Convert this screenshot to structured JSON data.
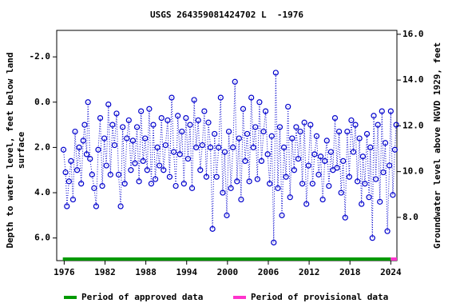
{
  "chart_data": {
    "type": "scatter",
    "title": "USGS 264359081424702 L  -1976",
    "ylabel": [
      "Depth to water level, feet below land",
      "surface"
    ],
    "y2label": "Groundwater level above NGVD 1929, feet",
    "xlim": [
      1974.9,
      2024.9
    ],
    "xticks": [
      1976,
      1982,
      1988,
      1994,
      2000,
      2006,
      2012,
      2018,
      2024
    ],
    "ylim": [
      -3.17,
      7.0
    ],
    "y_inverted": true,
    "yticks": [
      {
        "value": -2,
        "label": "-2.0"
      },
      {
        "value": 0,
        "label": "0.0"
      },
      {
        "value": 2,
        "label": "2.0"
      },
      {
        "value": 4,
        "label": "4.0"
      },
      {
        "value": 6,
        "label": "6.0"
      }
    ],
    "y2lim": [
      6.11,
      16.17
    ],
    "y2ticks": [
      {
        "value": 8,
        "label": "8.0"
      },
      {
        "value": 10,
        "label": "10.0"
      },
      {
        "value": 12,
        "label": "12.0"
      },
      {
        "value": 14,
        "label": "14.0"
      },
      {
        "value": 16,
        "label": "16.0"
      }
    ],
    "color": "#0000cc",
    "x": [
      1975.9,
      1976.2,
      1976.4,
      1976.7,
      1977.0,
      1977.3,
      1977.6,
      1977.9,
      1978.2,
      1978.5,
      1978.8,
      1979.0,
      1979.3,
      1979.5,
      1979.8,
      1980.1,
      1980.4,
      1980.7,
      1981.0,
      1981.3,
      1981.6,
      1981.9,
      1982.2,
      1982.5,
      1982.8,
      1983.1,
      1983.4,
      1983.7,
      1984.0,
      1984.3,
      1984.6,
      1984.9,
      1985.2,
      1985.5,
      1985.8,
      1986.1,
      1986.4,
      1986.7,
      1987.0,
      1987.3,
      1987.6,
      1987.9,
      1988.2,
      1988.5,
      1988.8,
      1989.1,
      1989.4,
      1989.7,
      1990.0,
      1990.3,
      1990.6,
      1990.9,
      1991.2,
      1991.5,
      1991.8,
      1992.1,
      1992.4,
      1992.7,
      1993.0,
      1993.3,
      1993.6,
      1993.9,
      1994.2,
      1994.5,
      1994.8,
      1995.1,
      1995.4,
      1995.7,
      1996.0,
      1996.3,
      1996.6,
      1996.9,
      1997.2,
      1997.5,
      1997.8,
      1998.1,
      1998.4,
      1998.7,
      1999.0,
      1999.3,
      1999.6,
      1999.9,
      2000.2,
      2000.5,
      2000.8,
      2001.1,
      2001.4,
      2001.7,
      2002.0,
      2002.3,
      2002.6,
      2002.9,
      2003.2,
      2003.5,
      2003.8,
      2004.1,
      2004.4,
      2004.7,
      2005.0,
      2005.3,
      2005.6,
      2005.9,
      2006.2,
      2006.5,
      2006.8,
      2007.1,
      2007.4,
      2007.7,
      2008.0,
      2008.3,
      2008.6,
      2008.9,
      2009.2,
      2009.5,
      2009.8,
      2010.1,
      2010.4,
      2010.7,
      2011.0,
      2011.3,
      2011.6,
      2011.9,
      2012.2,
      2012.5,
      2012.8,
      2013.1,
      2013.4,
      2013.7,
      2014.0,
      2014.3,
      2014.6,
      2014.9,
      2015.2,
      2015.5,
      2015.8,
      2016.1,
      2016.4,
      2016.7,
      2017.0,
      2017.3,
      2017.6,
      2017.9,
      2018.2,
      2018.5,
      2018.8,
      2019.1,
      2019.4,
      2019.7,
      2019.9,
      2020.2,
      2020.5,
      2020.8,
      2021.0,
      2021.3,
      2021.5,
      2021.8,
      2022.1,
      2022.4,
      2022.7,
      2022.9,
      2023.2,
      2023.5,
      2023.8,
      2024.0,
      2024.3,
      2024.6,
      2024.8
    ],
    "values": [
      2.1,
      3.1,
      4.6,
      3.5,
      2.6,
      4.3,
      1.3,
      3.0,
      2.0,
      3.6,
      1.7,
      1.0,
      2.3,
      0.0,
      2.5,
      3.2,
      3.8,
      4.6,
      2.1,
      0.7,
      3.7,
      1.6,
      2.8,
      0.1,
      3.2,
      1.0,
      1.9,
      0.5,
      3.2,
      4.6,
      1.1,
      3.6,
      1.6,
      0.8,
      3.0,
      1.7,
      2.7,
      1.1,
      3.5,
      0.4,
      2.6,
      1.6,
      3.0,
      0.3,
      3.6,
      1.0,
      3.4,
      2.0,
      2.8,
      0.7,
      3.0,
      1.9,
      0.8,
      3.3,
      -0.2,
      2.2,
      3.7,
      0.6,
      2.3,
      1.3,
      3.6,
      0.7,
      2.5,
      1.0,
      3.8,
      -0.1,
      2.0,
      0.8,
      3.0,
      1.9,
      0.4,
      3.3,
      0.9,
      2.0,
      5.6,
      1.4,
      3.3,
      2.0,
      -0.2,
      4.0,
      2.2,
      5.0,
      1.3,
      3.8,
      2.0,
      -0.9,
      3.5,
      1.6,
      4.3,
      0.3,
      2.6,
      1.4,
      3.5,
      -0.2,
      2.0,
      1.1,
      3.4,
      0.0,
      2.6,
      1.3,
      0.4,
      2.3,
      3.6,
      1.5,
      6.2,
      -1.3,
      3.8,
      1.1,
      5.0,
      2.0,
      3.3,
      0.2,
      4.2,
      1.6,
      3.0,
      1.1,
      2.5,
      1.3,
      3.6,
      0.9,
      4.5,
      2.8,
      1.0,
      3.6,
      2.3,
      1.5,
      3.2,
      2.4,
      4.3,
      2.6,
      1.7,
      3.7,
      2.2,
      3.0,
      0.7,
      2.9,
      1.3,
      4.0,
      2.6,
      5.1,
      1.3,
      3.3,
      0.8,
      2.2,
      1.0,
      3.5,
      1.6,
      4.5,
      2.4,
      3.6,
      1.4,
      4.2,
      2.0,
      6.0,
      0.6,
      3.4,
      1.0,
      4.4,
      0.4,
      3.1,
      1.8,
      5.7,
      2.8,
      0.4,
      4.1,
      2.1,
      1.0
    ],
    "periods": [
      {
        "name": "Period of approved data",
        "color": "#009900",
        "start": 1975.8,
        "end": 2024.0
      },
      {
        "name": "Period of provisional data",
        "color": "#ff33cc",
        "start": 2024.0,
        "end": 2024.9
      }
    ]
  }
}
